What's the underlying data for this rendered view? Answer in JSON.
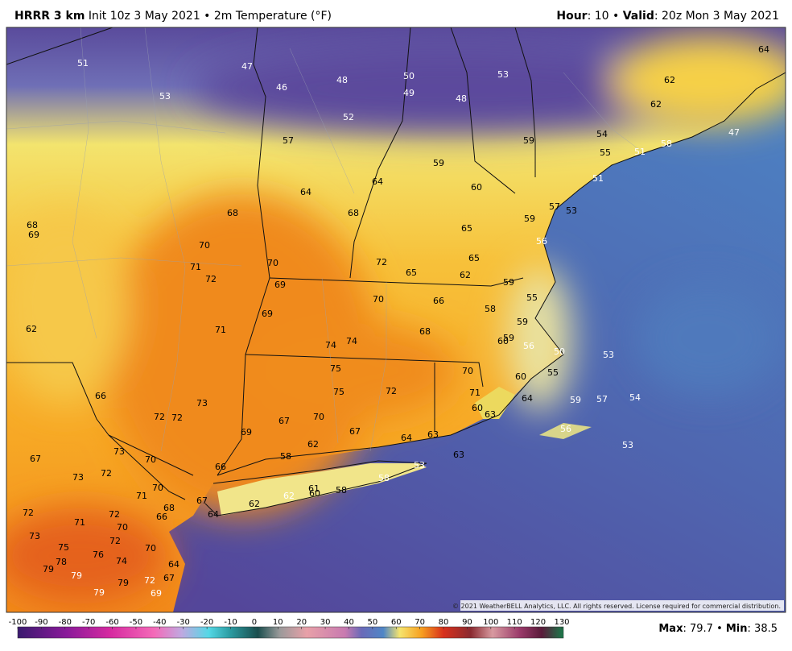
{
  "header": {
    "left": [
      "HRRR 3 km",
      "Init 10z 3 May 2021 • 2m Temperature (°F)"
    ],
    "right": [
      "Hour",
      ": 10 • ",
      "Valid",
      ": 20z Mon 3 May 2021"
    ]
  },
  "map": {
    "labels": [
      51,
      53,
      47,
      46,
      48,
      50,
      49,
      48,
      53,
      52,
      57,
      59,
      59,
      64,
      60,
      64,
      64,
      62,
      62,
      54,
      55,
      51,
      58,
      47,
      51,
      57,
      53,
      59,
      56,
      68,
      68,
      65,
      68,
      69,
      70,
      71,
      72,
      70,
      69,
      72,
      65,
      65,
      62,
      59,
      55,
      70,
      66,
      58,
      69,
      62,
      71,
      68,
      59,
      60,
      56,
      59,
      74,
      74,
      50,
      53,
      55,
      60,
      75,
      70,
      75,
      72,
      71,
      64,
      59,
      57,
      54,
      66,
      73,
      72,
      72,
      70,
      67,
      69,
      67,
      60,
      63,
      56,
      63,
      64,
      62,
      53,
      73,
      70,
      67,
      58,
      63,
      66,
      72,
      73,
      53,
      58,
      70,
      71,
      61,
      60,
      58,
      62,
      62,
      67,
      68,
      66,
      64,
      72,
      72,
      71,
      70,
      72,
      73,
      75,
      70,
      76,
      74,
      64,
      78,
      79,
      79,
      72,
      67,
      79,
      79,
      69
    ],
    "copyright": "© 2021 WeatherBELL Analytics, LLC. All rights reserved. License required for commercial distribution."
  },
  "colorbar": {
    "ticks": [
      -100,
      -90,
      -80,
      -70,
      -60,
      -50,
      -40,
      -30,
      -20,
      -10,
      0,
      10,
      20,
      30,
      40,
      50,
      60,
      70,
      80,
      90,
      100,
      110,
      120,
      130
    ]
  },
  "stats": {
    "parts": [
      "Max",
      ": 79.7 • ",
      "Min",
      ": 38.5"
    ]
  }
}
